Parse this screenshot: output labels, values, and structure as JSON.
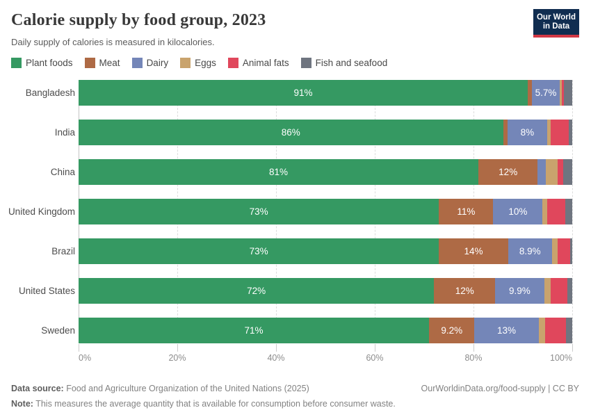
{
  "header": {
    "title": "Calorie supply by food group, 2023",
    "subtitle": "Daily supply of calories is measured in kilocalories."
  },
  "logo": {
    "line1": "Our World",
    "line2": "in Data",
    "bg_color": "#102d50",
    "accent_color": "#d13844"
  },
  "chart_data": {
    "type": "bar",
    "stacked": true,
    "orientation": "horizontal",
    "unit": "%",
    "xlim": [
      0,
      100
    ],
    "grid": "dashed-vertical",
    "legend_position": "top",
    "categories": [
      "Bangladesh",
      "India",
      "China",
      "United Kingdom",
      "Brazil",
      "United States",
      "Sweden"
    ],
    "series": [
      {
        "name": "Plant foods",
        "color": "#359962",
        "values": [
          91,
          86,
          81,
          73,
          73,
          72,
          71
        ],
        "labels": [
          "91%",
          "86%",
          "81%",
          "73%",
          "73%",
          "72%",
          "71%"
        ]
      },
      {
        "name": "Meat",
        "color": "#ae6a45",
        "values": [
          0.8,
          0.9,
          12,
          11,
          14,
          12.4,
          9.2
        ],
        "labels": [
          "",
          "",
          "12%",
          "11%",
          "14%",
          "12%",
          "9.2%"
        ]
      },
      {
        "name": "Dairy",
        "color": "#7486b8",
        "values": [
          5.7,
          8,
          1.7,
          10,
          8.9,
          9.9,
          13
        ],
        "labels": [
          "5.7%",
          "8%",
          "",
          "10%",
          "8.9%",
          "9.9%",
          "13%"
        ]
      },
      {
        "name": "Eggs",
        "color": "#c9a36d",
        "values": [
          0.4,
          0.7,
          2.3,
          1.0,
          1.1,
          1.3,
          1.3
        ],
        "labels": [
          "",
          "",
          "",
          "",
          "",
          "",
          ""
        ]
      },
      {
        "name": "Animal fats",
        "color": "#e0475c",
        "values": [
          0.4,
          3.7,
          1.2,
          3.6,
          2.6,
          3.4,
          4.3
        ],
        "labels": [
          "",
          "",
          "",
          "",
          "",
          "",
          ""
        ]
      },
      {
        "name": "Fish and seafood",
        "color": "#6f7580",
        "values": [
          1.7,
          0.7,
          1.8,
          1.4,
          0.4,
          1.0,
          1.2
        ],
        "labels": [
          "",
          "",
          "",
          "",
          "",
          "",
          ""
        ]
      }
    ],
    "x_ticks": [
      {
        "pos": 0,
        "label": "0%"
      },
      {
        "pos": 20,
        "label": "20%"
      },
      {
        "pos": 40,
        "label": "40%"
      },
      {
        "pos": 60,
        "label": "60%"
      },
      {
        "pos": 80,
        "label": "80%"
      },
      {
        "pos": 100,
        "label": "100%"
      }
    ]
  },
  "footer": {
    "datasource_label": "Data source:",
    "datasource_text": "Food and Agriculture Organization of the United Nations (2025)",
    "link": "OurWorldinData.org/food-supply",
    "separator": "|",
    "license": "CC BY",
    "note_label": "Note:",
    "note_text": "This measures the average quantity that is available for consumption before consumer waste."
  }
}
